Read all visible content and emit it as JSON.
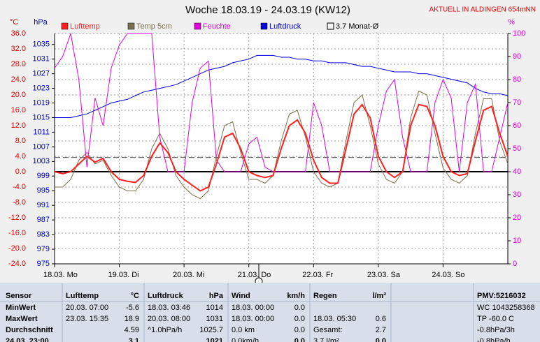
{
  "chart_data": {
    "type": "line",
    "title": "Woche 18.03.19 - 24.03.19 (KW12)",
    "subtitle": "AKTUELL IN ALDINGEN 654mNN",
    "y_label": "°C",
    "y3_label": "hPa",
    "y2_label": "%",
    "x": [
      0,
      3,
      6,
      9,
      12,
      15,
      18,
      21,
      24,
      27,
      30,
      33,
      36,
      39,
      42,
      45,
      48,
      51,
      54,
      57,
      60,
      63,
      66,
      69,
      72,
      75,
      78,
      81,
      84,
      87,
      90,
      93,
      96,
      99,
      102,
      105,
      108,
      111,
      114,
      117,
      120,
      123,
      126,
      129,
      132,
      135,
      138,
      141,
      144,
      147,
      150,
      153,
      156,
      159,
      162,
      165,
      168
    ],
    "xlim": [
      0,
      168
    ],
    "xticks": [
      {
        "value": 0,
        "label": "18.03.  Mo"
      },
      {
        "value": 24,
        "label": "19.03.  Di"
      },
      {
        "value": 48,
        "label": "20.03.  Mi"
      },
      {
        "value": 72,
        "label": "21.03.  Do"
      },
      {
        "value": 96,
        "label": "22.03.  Fr"
      },
      {
        "value": 120,
        "label": "23.03.  Sa"
      },
      {
        "value": 144,
        "label": "24.03.  So"
      }
    ],
    "ylim": [
      -24,
      36
    ],
    "yticks": [
      {
        "value": 36,
        "label": "36.0"
      },
      {
        "value": 32,
        "label": "32.0"
      },
      {
        "value": 28,
        "label": "28.0"
      },
      {
        "value": 24,
        "label": "24.0"
      },
      {
        "value": 20,
        "label": "20.0"
      },
      {
        "value": 16,
        "label": "16.0"
      },
      {
        "value": 12,
        "label": "12.0"
      },
      {
        "value": 8,
        "label": "8.0"
      },
      {
        "value": 4,
        "label": "4.0"
      },
      {
        "value": 0,
        "label": "0.0"
      },
      {
        "value": -4,
        "label": "-4.0"
      },
      {
        "value": -8,
        "label": "-8.0"
      },
      {
        "value": -12,
        "label": "-12.0"
      },
      {
        "value": -16,
        "label": "-16.0"
      },
      {
        "value": -20,
        "label": "-20.0"
      },
      {
        "value": -24,
        "label": "-24.0"
      }
    ],
    "y2lim": [
      0,
      100
    ],
    "y2ticks": [
      0,
      10,
      20,
      30,
      40,
      50,
      60,
      70,
      80,
      90,
      100
    ],
    "y3lim": [
      975,
      1038
    ],
    "y3ticks": [
      975,
      979,
      983,
      987,
      991,
      995,
      999,
      1003,
      1007,
      1011,
      1015,
      1019,
      1023,
      1027,
      1031,
      1035
    ],
    "grid": true,
    "reference": {
      "label": "3.7 Monat-Ø",
      "value": 3.7
    },
    "series": [
      {
        "name": "Luftdruck",
        "color": "#0000e0",
        "axis": "y3",
        "values": [
          1015,
          1015,
          1015,
          1015.5,
          1016,
          1017,
          1018,
          1019,
          1019.5,
          1020,
          1021,
          1022,
          1022.5,
          1023,
          1023.5,
          1024,
          1025,
          1026,
          1027,
          1028,
          1028.5,
          1029,
          1030,
          1030.5,
          1031,
          1032,
          1032,
          1032,
          1031.5,
          1031.5,
          1031,
          1031,
          1030.5,
          1030.5,
          1030,
          1030,
          1030,
          1029.5,
          1029,
          1029,
          1028.5,
          1028,
          1027.5,
          1027.5,
          1027.5,
          1027,
          1027,
          1026.5,
          1026,
          1025.5,
          1025,
          1024.5,
          1023,
          1022,
          1021.5,
          1021.5,
          1021
        ]
      },
      {
        "name": "Feuchte",
        "color": "#e000e0",
        "axis": "y2",
        "values": [
          85,
          90,
          100,
          80,
          42,
          72,
          60,
          85,
          95,
          100,
          100,
          100,
          100,
          55,
          40,
          40,
          40,
          70,
          85,
          88,
          45,
          40,
          40,
          40,
          52,
          55,
          42,
          40,
          40,
          40,
          40,
          40,
          70,
          60,
          40,
          40,
          40,
          40,
          40,
          40,
          60,
          75,
          80,
          55,
          40,
          40,
          40,
          70,
          80,
          72,
          40,
          70,
          78,
          40,
          40,
          55,
          70
        ]
      },
      {
        "name": "Temp 5cm",
        "color": "#7a7050",
        "axis": "y",
        "values": [
          -4,
          -4,
          -2,
          3,
          5,
          2,
          3,
          -1,
          -4,
          -5,
          -5,
          -2,
          6,
          10,
          6,
          -1,
          -4,
          -6,
          -7,
          -5,
          4,
          12,
          13,
          5,
          -2,
          -2,
          -3,
          -1,
          8,
          15,
          16,
          9,
          0,
          -3,
          -4,
          -3,
          8,
          18,
          20,
          12,
          2,
          -2,
          -3,
          0,
          14,
          21,
          20,
          10,
          1,
          -2,
          -3,
          -1,
          10,
          19,
          19,
          8,
          2
        ]
      },
      {
        "name": "Lufttemp",
        "color": "#ff2020",
        "axis": "y",
        "values": [
          0,
          -0.5,
          0,
          2,
          4,
          2.5,
          3.5,
          0,
          -2,
          -2.5,
          -2.8,
          -1,
          4,
          7.5,
          5,
          0,
          -2,
          -3.5,
          -5,
          -4,
          2,
          9,
          10,
          6,
          0,
          -1,
          -1.5,
          -1,
          6,
          12,
          13.5,
          10,
          3,
          -1.5,
          -3,
          -3,
          6,
          15,
          17.5,
          14,
          4,
          0,
          -1.5,
          0,
          12,
          17.5,
          17,
          12,
          4,
          0,
          -1,
          -0.5,
          8,
          16,
          17,
          10,
          4
        ]
      }
    ]
  },
  "table": {
    "header": [
      "Sensor",
      "Lufttemp",
      "°C",
      "Luftdruck",
      "hPa",
      "Wind",
      "km/h",
      "Regen",
      "l/m²",
      "PMV:5216032"
    ],
    "rows": [
      [
        "MinWert",
        "20.03.  07:00",
        "-5.6",
        "18.03.  03:46",
        "1014",
        "18.03.  00:00",
        "0.0",
        null,
        null,
        "WC 1043258368"
      ],
      [
        "MaxWert",
        "23.03.  15:35",
        "18.9",
        "20.03.  08:00",
        "1031",
        "18.03.  00:00",
        "0.0",
        "18.03.  05:30",
        "0.6",
        "TP -60.0 C"
      ],
      [
        "Durchschnitt",
        null,
        "4.59",
        "^1.0hPa/h",
        "1025.7",
        "0.0 km",
        "0.0",
        "Gesamt:",
        "2.7",
        "-0.8hPa/3h"
      ],
      [
        "24.03.  23:00",
        null,
        "3.1",
        null,
        "1021",
        "0.0km/h",
        "0.0",
        "3.7 l/m²",
        "0.0",
        "-0.8hPa/h"
      ]
    ]
  }
}
